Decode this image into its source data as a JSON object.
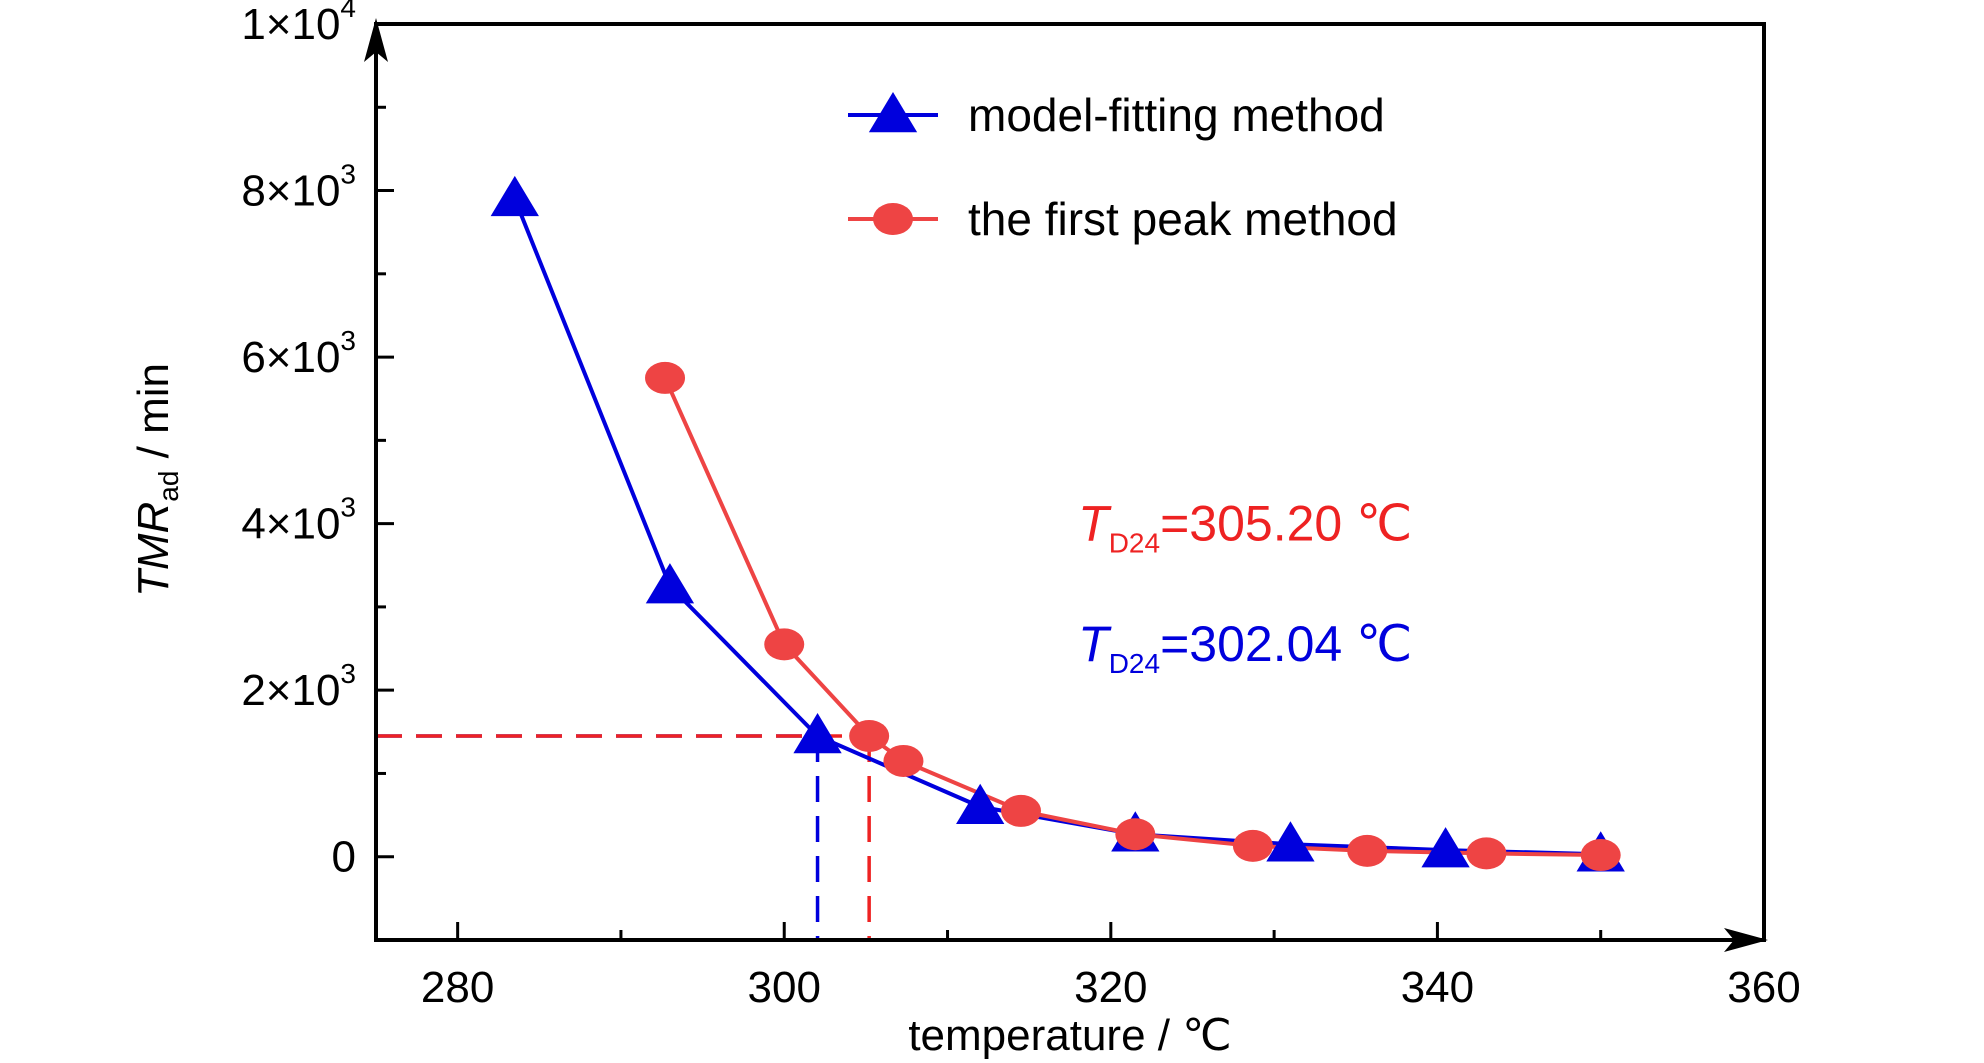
{
  "chart_data": {
    "type": "line",
    "xlabel": "temperature / ℃",
    "ylabel": {
      "main": "TMR",
      "subscript": "ad",
      "suffix": " / min"
    },
    "xlim": [
      275,
      360
    ],
    "ylim": [
      -1000,
      10000
    ],
    "x_ticks": [
      {
        "value": 280,
        "label": "280"
      },
      {
        "value": 300,
        "label": "300"
      },
      {
        "value": 320,
        "label": "320"
      },
      {
        "value": 340,
        "label": "340"
      },
      {
        "value": 360,
        "label": "360"
      }
    ],
    "x_minor_ticks": [
      290,
      310,
      330,
      350
    ],
    "y_ticks": [
      {
        "value": 0,
        "mantissa": "0",
        "exponent": ""
      },
      {
        "value": 2000,
        "mantissa": "2×10",
        "exponent": "3"
      },
      {
        "value": 4000,
        "mantissa": "4×10",
        "exponent": "3"
      },
      {
        "value": 6000,
        "mantissa": "6×10",
        "exponent": "3"
      },
      {
        "value": 8000,
        "mantissa": "8×10",
        "exponent": "3"
      },
      {
        "value": 10000,
        "mantissa": "1×10",
        "exponent": "4"
      }
    ],
    "y_minor_ticks": [
      1000,
      3000,
      5000,
      7000,
      9000
    ],
    "grid": false,
    "legend_position": "top-center",
    "series": [
      {
        "name": "model-fitting method",
        "color": "#0000dd",
        "marker": "triangle",
        "x": [
          283.5,
          293,
          302.04,
          312,
          321.5,
          331,
          340.5,
          350
        ],
        "y": [
          7900,
          3250,
          1450,
          600,
          270,
          150,
          80,
          30
        ]
      },
      {
        "name": "the first peak method",
        "color": "#ee4444",
        "marker": "circle",
        "x": [
          292.7,
          300,
          305.2,
          307.3,
          314.5,
          321.5,
          328.7,
          335.7,
          343,
          350
        ],
        "y": [
          5750,
          2550,
          1450,
          1150,
          550,
          270,
          130,
          70,
          40,
          20
        ]
      }
    ],
    "reference_lines": [
      {
        "color": "#0000dd",
        "x": 302.04,
        "y": 1450
      },
      {
        "color": "#ee2222",
        "x": 305.2,
        "y": 1450
      }
    ],
    "annotations": [
      {
        "id": "red",
        "color": "#ee2222",
        "symbol": "T",
        "subscript": "D24",
        "value_text": "=305.20 ℃",
        "anchor_x": 318,
        "anchor_y": 3800
      },
      {
        "id": "blue",
        "color": "#0000dd",
        "symbol": "T",
        "subscript": "D24",
        "value_text": "=302.04 ℃",
        "anchor_x": 318,
        "anchor_y": 2350
      }
    ]
  }
}
